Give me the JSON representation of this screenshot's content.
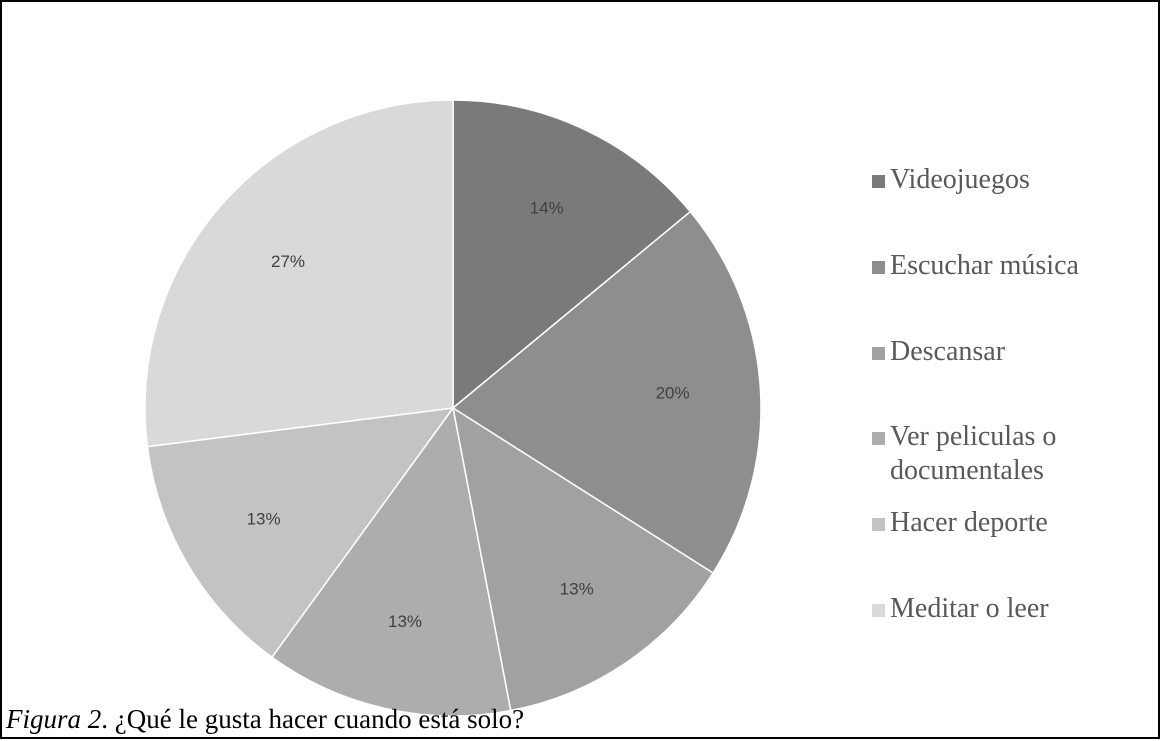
{
  "chart_data": {
    "type": "pie",
    "categories": [
      "Videojuegos",
      "Escuchar música",
      "Descansar",
      "Ver peliculas o documentales",
      "Hacer deporte",
      "Meditar o leer"
    ],
    "values": [
      14,
      20,
      13,
      13,
      13,
      27
    ],
    "data_labels": [
      "14%",
      "20%",
      "13%",
      "13%",
      "13%",
      "27%"
    ],
    "colors": [
      "#7a7a7a",
      "#8e8e8e",
      "#a1a1a1",
      "#adadad",
      "#c3c3c3",
      "#d9d9d9"
    ],
    "legend_placement": "right",
    "start": "top, clockwise"
  },
  "legend": {
    "items": [
      {
        "label": "Videojuegos",
        "color": "#7a7a7a"
      },
      {
        "label": "Escuchar música",
        "color": "#8e8e8e"
      },
      {
        "label": "Descansar",
        "color": "#a1a1a1"
      },
      {
        "label": "Ver peliculas o\ndocumentales",
        "color": "#adadad"
      },
      {
        "label": "Hacer deporte",
        "color": "#c3c3c3"
      },
      {
        "label": "Meditar o leer",
        "color": "#d9d9d9"
      }
    ]
  },
  "caption": {
    "figure_label": "Figura 2",
    "text": ". ¿Qué le gusta hacer cuando está solo?"
  }
}
